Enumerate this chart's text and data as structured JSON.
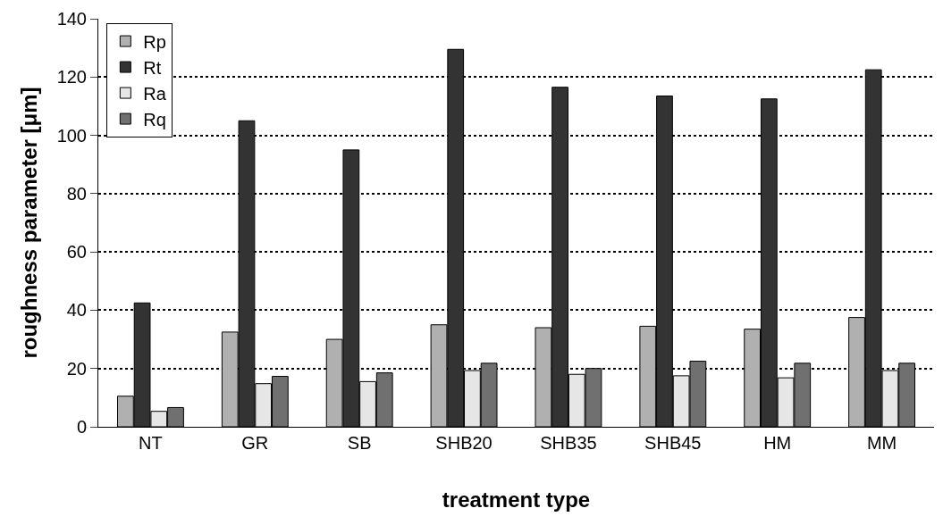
{
  "chart_data": {
    "type": "bar",
    "xlabel": "treatment type",
    "ylabel": "roughness parameter [μm]",
    "categories": [
      "NT",
      "GR",
      "SB",
      "SHB20",
      "SHB35",
      "SHB45",
      "HM",
      "MM"
    ],
    "series": [
      {
        "name": "Rp",
        "color": "#b0b0b0",
        "values": [
          10.5,
          32.5,
          30,
          35,
          34,
          34.5,
          33.5,
          37.5
        ]
      },
      {
        "name": "Rt",
        "color": "#333333",
        "values": [
          42.5,
          105,
          95,
          129.5,
          116.5,
          113.5,
          112.5,
          122.5
        ]
      },
      {
        "name": "Ra",
        "color": "#e6e6e6",
        "values": [
          5.3,
          14.8,
          15.5,
          19.3,
          18,
          17.5,
          16.8,
          19.3
        ]
      },
      {
        "name": "Rq",
        "color": "#707070",
        "values": [
          6.6,
          17.3,
          18.5,
          21.8,
          20,
          22.5,
          21.8,
          21.8
        ]
      }
    ],
    "ylim": [
      0,
      140
    ],
    "yticks": [
      0,
      20,
      40,
      60,
      80,
      100,
      120,
      140
    ],
    "grid": "y",
    "legend": "top left"
  }
}
